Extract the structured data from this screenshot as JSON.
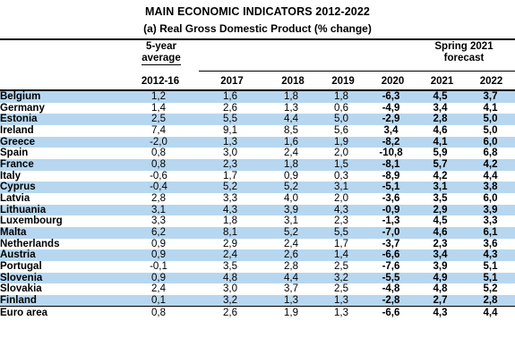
{
  "title": "MAIN ECONOMIC INDICATORS 2012-2022",
  "subtitle": "(a) Real Gross Domestic Product (% change)",
  "headers": {
    "avg_line1": "5-year",
    "avg_line2": "average",
    "forecast_line1": "Spring 2021",
    "forecast_line2": "forecast",
    "columns": [
      "2012-16",
      "2017",
      "2018",
      "2019",
      "2020",
      "2021",
      "2022"
    ]
  },
  "rows": [
    {
      "country": "Belgium",
      "values": [
        "1,2",
        "1,6",
        "1,8",
        "1,8",
        "-6,3",
        "4,5",
        "3,7"
      ]
    },
    {
      "country": "Germany",
      "values": [
        "1,4",
        "2,6",
        "1,3",
        "0,6",
        "-4,9",
        "3,4",
        "4,1"
      ]
    },
    {
      "country": "Estonia",
      "values": [
        "2,5",
        "5,5",
        "4,4",
        "5,0",
        "-2,9",
        "2,8",
        "5,0"
      ]
    },
    {
      "country": "Ireland",
      "values": [
        "7,4",
        "9,1",
        "8,5",
        "5,6",
        "3,4",
        "4,6",
        "5,0"
      ]
    },
    {
      "country": "Greece",
      "values": [
        "-2,0",
        "1,3",
        "1,6",
        "1,9",
        "-8,2",
        "4,1",
        "6,0"
      ]
    },
    {
      "country": "Spain",
      "values": [
        "0,8",
        "3,0",
        "2,4",
        "2,0",
        "-10,8",
        "5,9",
        "6,8"
      ]
    },
    {
      "country": "France",
      "values": [
        "0,8",
        "2,3",
        "1,8",
        "1,5",
        "-8,1",
        "5,7",
        "4,2"
      ]
    },
    {
      "country": "Italy",
      "values": [
        "-0,6",
        "1,7",
        "0,9",
        "0,3",
        "-8,9",
        "4,2",
        "4,4"
      ]
    },
    {
      "country": "Cyprus",
      "values": [
        "-0,4",
        "5,2",
        "5,2",
        "3,1",
        "-5,1",
        "3,1",
        "3,8"
      ]
    },
    {
      "country": "Latvia",
      "values": [
        "2,8",
        "3,3",
        "4,0",
        "2,0",
        "-3,6",
        "3,5",
        "6,0"
      ]
    },
    {
      "country": "Lithuania",
      "values": [
        "3,1",
        "4,3",
        "3,9",
        "4,3",
        "-0,9",
        "2,9",
        "3,9"
      ]
    },
    {
      "country": "Luxembourg",
      "values": [
        "3,3",
        "1,8",
        "3,1",
        "2,3",
        "-1,3",
        "4,5",
        "3,3"
      ]
    },
    {
      "country": "Malta",
      "values": [
        "6,2",
        "8,1",
        "5,2",
        "5,5",
        "-7,0",
        "4,6",
        "6,1"
      ]
    },
    {
      "country": "Netherlands",
      "values": [
        "0,9",
        "2,9",
        "2,4",
        "1,7",
        "-3,7",
        "2,3",
        "3,6"
      ]
    },
    {
      "country": "Austria",
      "values": [
        "0,9",
        "2,4",
        "2,6",
        "1,4",
        "-6,6",
        "3,4",
        "4,3"
      ]
    },
    {
      "country": "Portugal",
      "values": [
        "-0,1",
        "3,5",
        "2,8",
        "2,5",
        "-7,6",
        "3,9",
        "5,1"
      ]
    },
    {
      "country": "Slovenia",
      "values": [
        "0,9",
        "4,8",
        "4,4",
        "3,2",
        "-5,5",
        "4,9",
        "5,1"
      ]
    },
    {
      "country": "Slovakia",
      "values": [
        "2,4",
        "3,0",
        "3,7",
        "2,5",
        "-4,8",
        "4,8",
        "5,2"
      ]
    },
    {
      "country": "Finland",
      "values": [
        "0,1",
        "3,2",
        "1,3",
        "1,3",
        "-2,8",
        "2,7",
        "2,8"
      ]
    },
    {
      "country": "Euro area",
      "values": [
        "0,8",
        "2,6",
        "1,9",
        "1,3",
        "-6,6",
        "4,3",
        "4,4"
      ]
    }
  ],
  "colors": {
    "row_shade": "#b7d7f0"
  }
}
